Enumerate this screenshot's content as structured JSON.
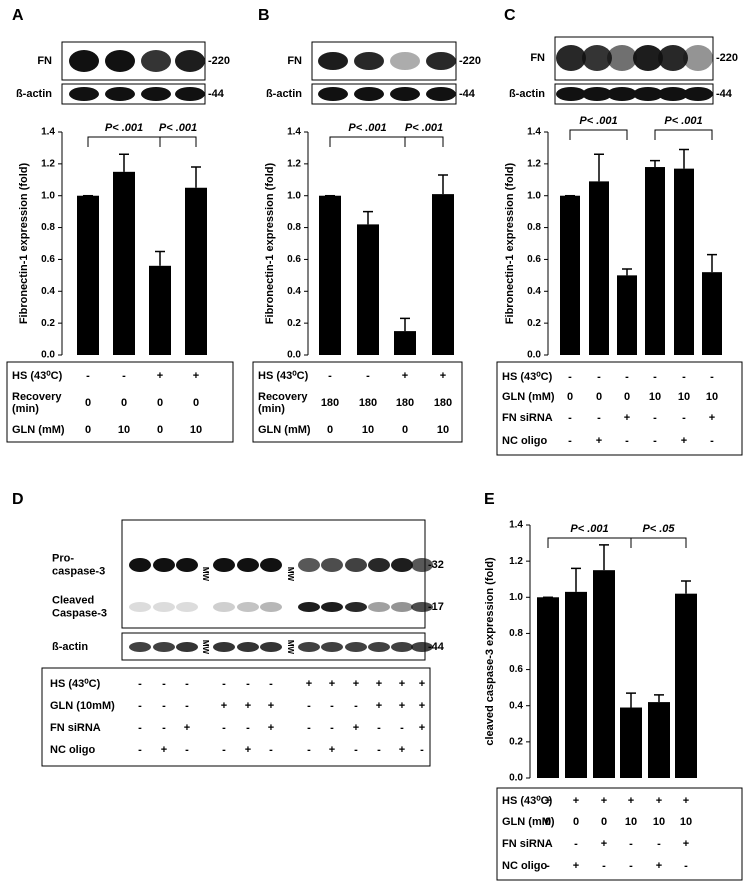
{
  "chart_data": [
    {
      "type": "bar",
      "panel": "A",
      "y_label": "Fibronectin-1 expression (fold)",
      "color": "#000000",
      "values": [
        1.0,
        1.15,
        0.56,
        1.05
      ],
      "errors": [
        0,
        0.11,
        0.09,
        0.13
      ],
      "ylim": [
        0,
        1.4
      ],
      "yticks": [
        {
          "value": 0,
          "label": "0.0"
        },
        0.2,
        0.4,
        0.6,
        0.8,
        {
          "value": 1,
          "label": "1.0"
        },
        1.2,
        1.4
      ],
      "annotations": [
        "P< .001",
        "P< .001"
      ],
      "blot": [
        {
          "label": "FN",
          "marker": "-220"
        },
        {
          "label": "ß-actin",
          "marker": "-44"
        }
      ],
      "conditions": [
        {
          "label": "HS (43⁰C)",
          "cells": [
            "-",
            "-",
            "+",
            "+"
          ]
        },
        {
          "label": [
            "Recovery",
            "(min)"
          ],
          "cells": [
            "0",
            "0",
            "0",
            "0"
          ]
        },
        {
          "label": "GLN (mM)",
          "cells": [
            "0",
            "10",
            "0",
            "10"
          ]
        }
      ]
    },
    {
      "type": "bar",
      "panel": "B",
      "y_label": "Fibronectin-1 expression (fold)",
      "color": "#000000",
      "values": [
        1.0,
        0.82,
        0.15,
        1.01
      ],
      "errors": [
        0,
        0.08,
        0.08,
        0.12
      ],
      "ylim": [
        0,
        1.4
      ],
      "yticks": [
        {
          "value": 0,
          "label": "0.0"
        },
        0.2,
        0.4,
        0.6,
        0.8,
        {
          "value": 1,
          "label": "1.0"
        },
        1.2,
        1.4
      ],
      "annotations": [
        "P< .001",
        "P< .001"
      ],
      "blot": [
        {
          "label": "FN",
          "marker": "-220"
        },
        {
          "label": "ß-actin",
          "marker": "-44"
        }
      ],
      "conditions": [
        {
          "label": "HS (43⁰C)",
          "cells": [
            "-",
            "-",
            "+",
            "+"
          ]
        },
        {
          "label": [
            "Recovery",
            "(min)"
          ],
          "cells": [
            "180",
            "180",
            "180",
            "180"
          ]
        },
        {
          "label": "GLN (mM)",
          "cells": [
            "0",
            "10",
            "0",
            "10"
          ]
        }
      ]
    },
    {
      "type": "bar",
      "panel": "C",
      "y_label": "Fibronectin-1 expression (fold)",
      "color": "#000000",
      "values": [
        1.0,
        1.09,
        0.5,
        1.18,
        1.17,
        0.52
      ],
      "errors": [
        0,
        0.17,
        0.04,
        0.04,
        0.12,
        0.11
      ],
      "ylim": [
        0,
        1.4
      ],
      "yticks": [
        {
          "value": 0,
          "label": "0.0"
        },
        0.2,
        0.4,
        0.6,
        0.8,
        {
          "value": 1,
          "label": "1.0"
        },
        1.2,
        1.4
      ],
      "annotations": [
        "P< .001",
        "P< .001"
      ],
      "blot": [
        {
          "label": "FN",
          "marker": "-220"
        },
        {
          "label": "ß-actin",
          "marker": "-44"
        }
      ],
      "conditions": [
        {
          "label": "HS (43⁰C)",
          "cells": [
            "-",
            "-",
            "-",
            "-",
            "-",
            "-"
          ]
        },
        {
          "label": "GLN (mM)",
          "cells": [
            "0",
            "0",
            "0",
            "10",
            "10",
            "10"
          ]
        },
        {
          "label": "FN siRNA",
          "cells": [
            "-",
            "-",
            "+",
            "-",
            "-",
            "+"
          ]
        },
        {
          "label": "NC oligo",
          "cells": [
            "-",
            "+",
            "-",
            "-",
            "+",
            "-"
          ]
        }
      ]
    },
    {
      "type": "bar",
      "panel": "E",
      "y_label": "cleaved caspase-3 expression (fold)",
      "color": "#000000",
      "values": [
        1.0,
        1.03,
        1.15,
        0.39,
        0.42,
        1.02
      ],
      "errors": [
        0,
        0.13,
        0.14,
        0.08,
        0.04,
        0.07
      ],
      "ylim": [
        0,
        1.4
      ],
      "yticks": [
        {
          "value": 0,
          "label": "0.0"
        },
        0.2,
        0.4,
        0.6,
        0.8,
        {
          "value": 1,
          "label": "1.0"
        },
        1.2,
        1.4
      ],
      "annotations": [
        "P< .001",
        "P< .05"
      ],
      "conditions": [
        {
          "label": "HS (43⁰C)",
          "cells": [
            "+",
            "+",
            "+",
            "+",
            "+",
            "+"
          ]
        },
        {
          "label": "GLN (mM)",
          "cells": [
            "0",
            "0",
            "0",
            "10",
            "10",
            "10"
          ]
        },
        {
          "label": "FN siRNA",
          "cells": [
            "-",
            "-",
            "+",
            "-",
            "-",
            "+"
          ]
        },
        {
          "label": "NC oligo",
          "cells": [
            "-",
            "+",
            "-",
            "-",
            "+",
            "-"
          ]
        }
      ]
    }
  ],
  "panel_d": {
    "panel": "D",
    "blot": [
      {
        "label": [
          "Pro-",
          "caspase-3"
        ],
        "marker": "-32"
      },
      {
        "label": [
          "Cleaved",
          "Caspase-3"
        ],
        "marker": "-17"
      },
      {
        "label": "ß-actin",
        "marker": "-44"
      }
    ],
    "mw_labels": [
      "MW",
      "MW",
      "MW",
      "MW"
    ],
    "conditions": [
      {
        "label": "HS (43⁰C)",
        "cells": [
          "-",
          "-",
          "-",
          "-",
          "-",
          "-",
          "+",
          "+",
          "+",
          "+",
          "+",
          "+"
        ]
      },
      {
        "label": "GLN (10mM)",
        "cells": [
          "-",
          "-",
          "-",
          "+",
          "+",
          "+",
          "-",
          "-",
          "-",
          "+",
          "+",
          "+"
        ]
      },
      {
        "label": "FN siRNA",
        "cells": [
          "-",
          "-",
          "+",
          "-",
          "-",
          "+",
          "-",
          "-",
          "+",
          "-",
          "-",
          "+"
        ]
      },
      {
        "label": "NC oligo",
        "cells": [
          "-",
          "+",
          "-",
          "-",
          "+",
          "-",
          "-",
          "+",
          "-",
          "-",
          "+",
          "-"
        ]
      }
    ]
  }
}
